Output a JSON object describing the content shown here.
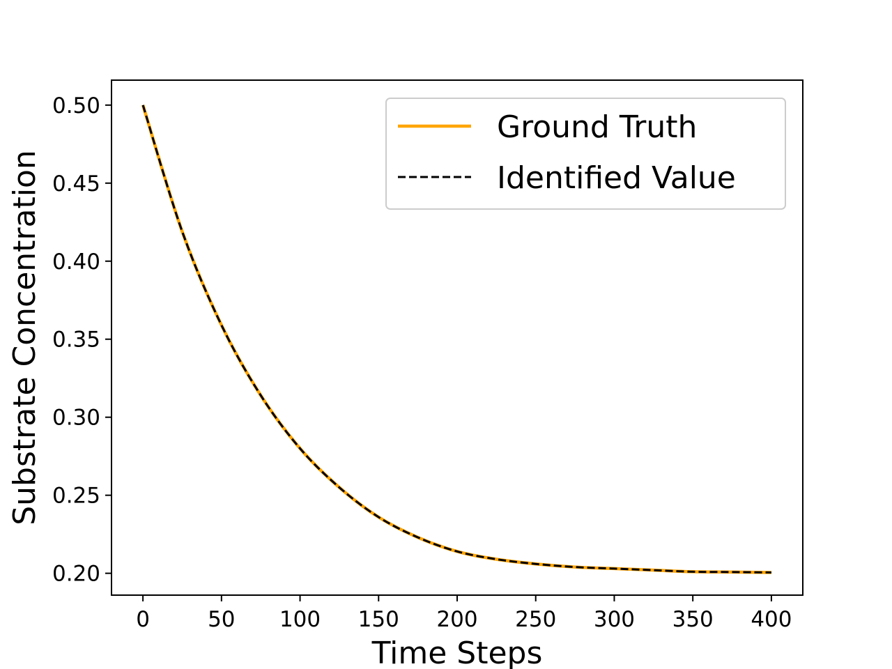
{
  "chart_data": {
    "type": "line",
    "title": "",
    "xlabel": "Time Steps",
    "ylabel": "Substrate Concentration",
    "xlim": [
      -20,
      420
    ],
    "ylim": [
      0.186,
      0.516
    ],
    "xticks": [
      0,
      50,
      100,
      150,
      200,
      250,
      300,
      350,
      400
    ],
    "yticks": [
      0.2,
      0.25,
      0.3,
      0.35,
      0.4,
      0.45,
      0.5
    ],
    "xtick_labels": [
      "0",
      "50",
      "100",
      "150",
      "200",
      "250",
      "300",
      "350",
      "400"
    ],
    "ytick_labels": [
      "0.20",
      "0.25",
      "0.30",
      "0.35",
      "0.40",
      "0.45",
      "0.50"
    ],
    "grid": false,
    "legend_position": "top-right",
    "x": [
      0,
      25,
      50,
      75,
      100,
      125,
      150,
      175,
      200,
      225,
      250,
      275,
      300,
      325,
      350,
      375,
      400
    ],
    "series": [
      {
        "name": "Ground Truth",
        "color": "#ffa500",
        "style": "solid",
        "values": [
          0.5,
          0.419,
          0.359,
          0.314,
          0.28,
          0.255,
          0.236,
          0.223,
          0.214,
          0.209,
          0.206,
          0.204,
          0.203,
          0.202,
          0.201,
          0.2008,
          0.2005
        ]
      },
      {
        "name": "Identified Value",
        "color": "#000000",
        "style": "dashed",
        "values": [
          0.5,
          0.419,
          0.359,
          0.314,
          0.28,
          0.255,
          0.236,
          0.223,
          0.214,
          0.209,
          0.206,
          0.204,
          0.203,
          0.202,
          0.201,
          0.2008,
          0.2005
        ]
      }
    ]
  }
}
